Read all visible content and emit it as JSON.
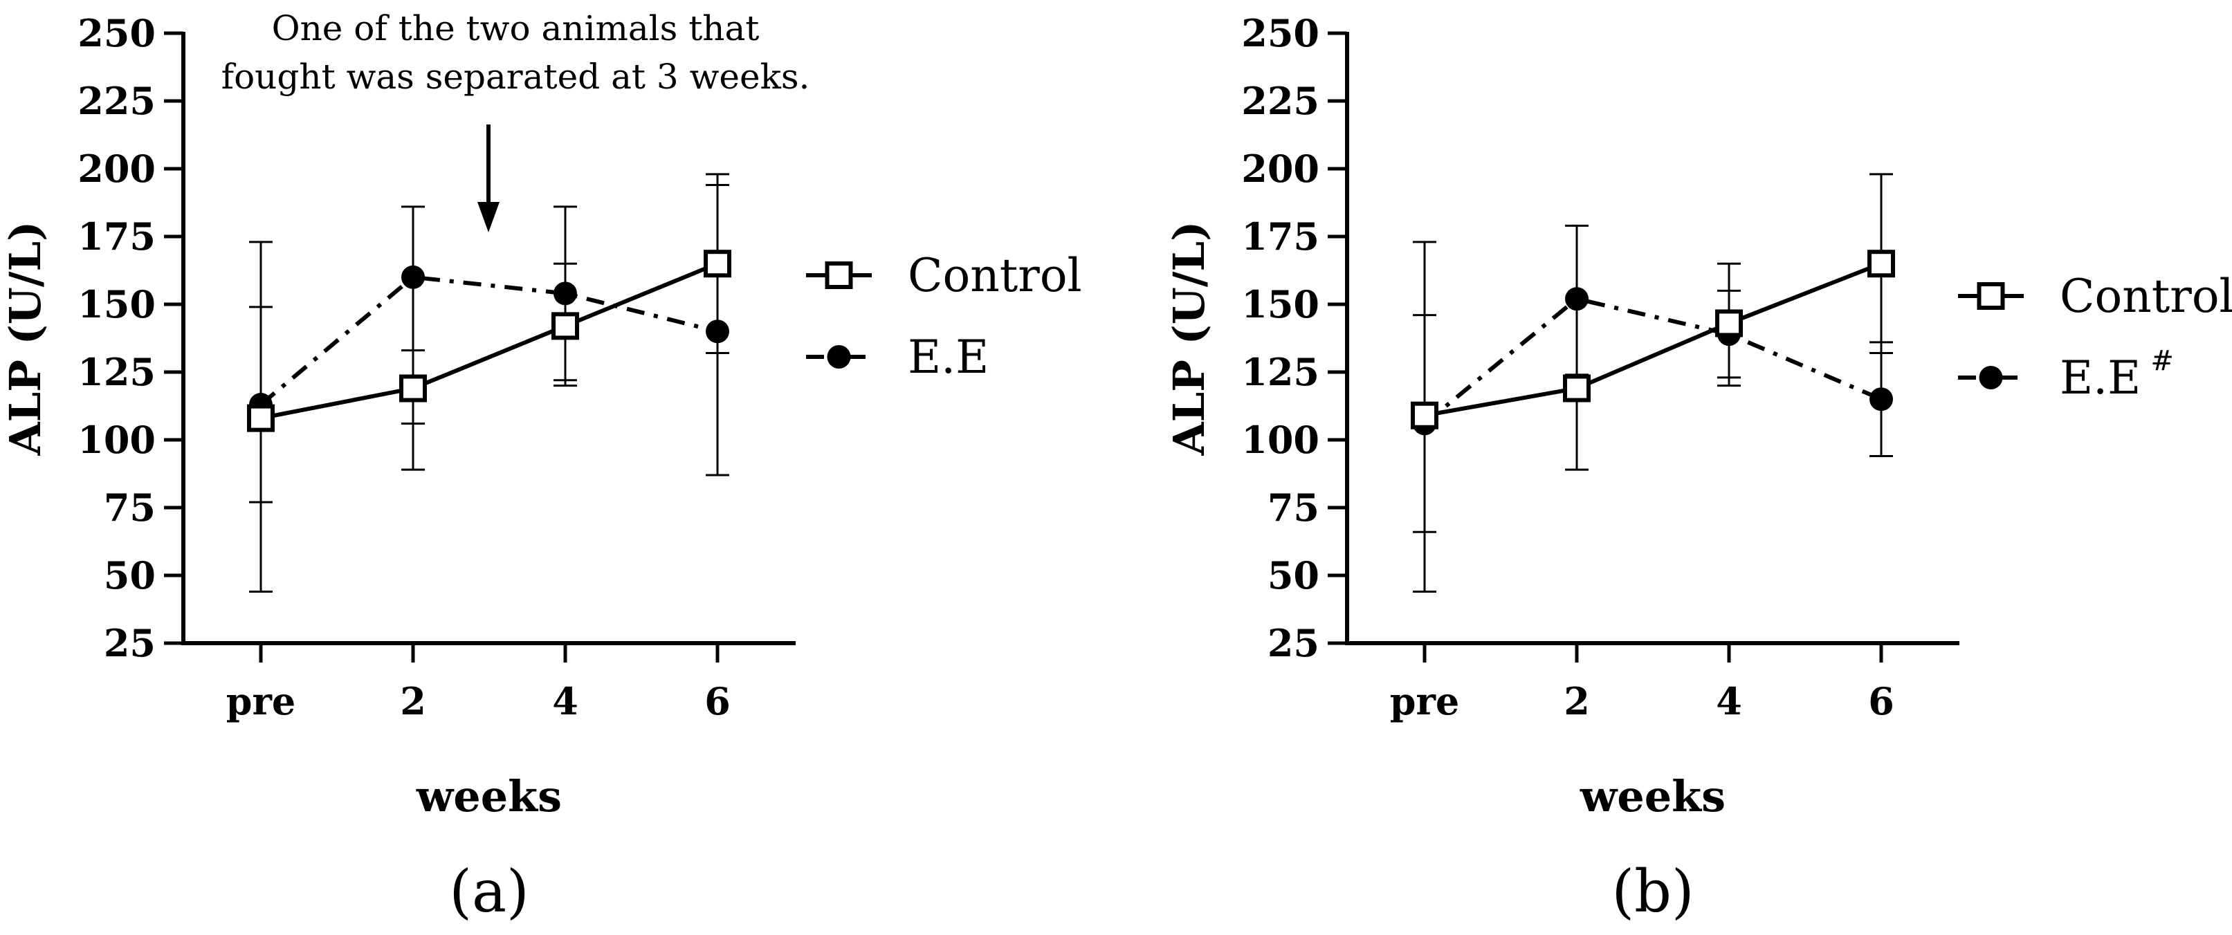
{
  "chart_data": [
    {
      "type": "line",
      "panel_label": "(a)",
      "categories": [
        "pre",
        "2",
        "4",
        "6"
      ],
      "xlabel": "weeks",
      "ylabel": "ALP (U/L)",
      "ylim": [
        25,
        250
      ],
      "yticks": [
        25,
        50,
        75,
        100,
        125,
        150,
        175,
        200,
        225,
        250
      ],
      "grid": false,
      "legend_position": "right",
      "annotation": [
        "One of the two animals that",
        "fought was separated at 3 weeks."
      ],
      "annotation_arrow_at_x": 3,
      "series": [
        {
          "name": "Control",
          "line_style": "solid",
          "marker": "open-square",
          "values": [
            108,
            119,
            142,
            165
          ],
          "error_upper": [
            149,
            133,
            165,
            198
          ],
          "error_lower": [
            77,
            106,
            122,
            132
          ]
        },
        {
          "name": "E.E",
          "line_style": "dash-dot",
          "marker": "filled-circle",
          "values": [
            113,
            160,
            154,
            140
          ],
          "error_upper": [
            173,
            186,
            186,
            194
          ],
          "error_lower": [
            44,
            89,
            120,
            87
          ]
        }
      ]
    },
    {
      "type": "line",
      "panel_label": "(b)",
      "categories": [
        "pre",
        "2",
        "4",
        "6"
      ],
      "xlabel": "weeks",
      "ylabel": "ALP (U/L)",
      "ylim": [
        25,
        250
      ],
      "yticks": [
        25,
        50,
        75,
        100,
        125,
        150,
        175,
        200,
        225,
        250
      ],
      "grid": false,
      "legend_position": "right",
      "series": [
        {
          "name": "Control",
          "name_superscript": "",
          "line_style": "solid",
          "marker": "open-square",
          "values": [
            109,
            119,
            143,
            165
          ],
          "error_upper": [
            146,
            124,
            165,
            198
          ],
          "error_lower": [
            66,
            115,
            120,
            132
          ]
        },
        {
          "name": "E.E",
          "name_superscript": "#",
          "line_style": "dash-dot",
          "marker": "filled-circle",
          "values": [
            106,
            152,
            139,
            115
          ],
          "error_upper": [
            173,
            179,
            155,
            136
          ],
          "error_lower": [
            44,
            89,
            123,
            94
          ]
        }
      ]
    }
  ]
}
